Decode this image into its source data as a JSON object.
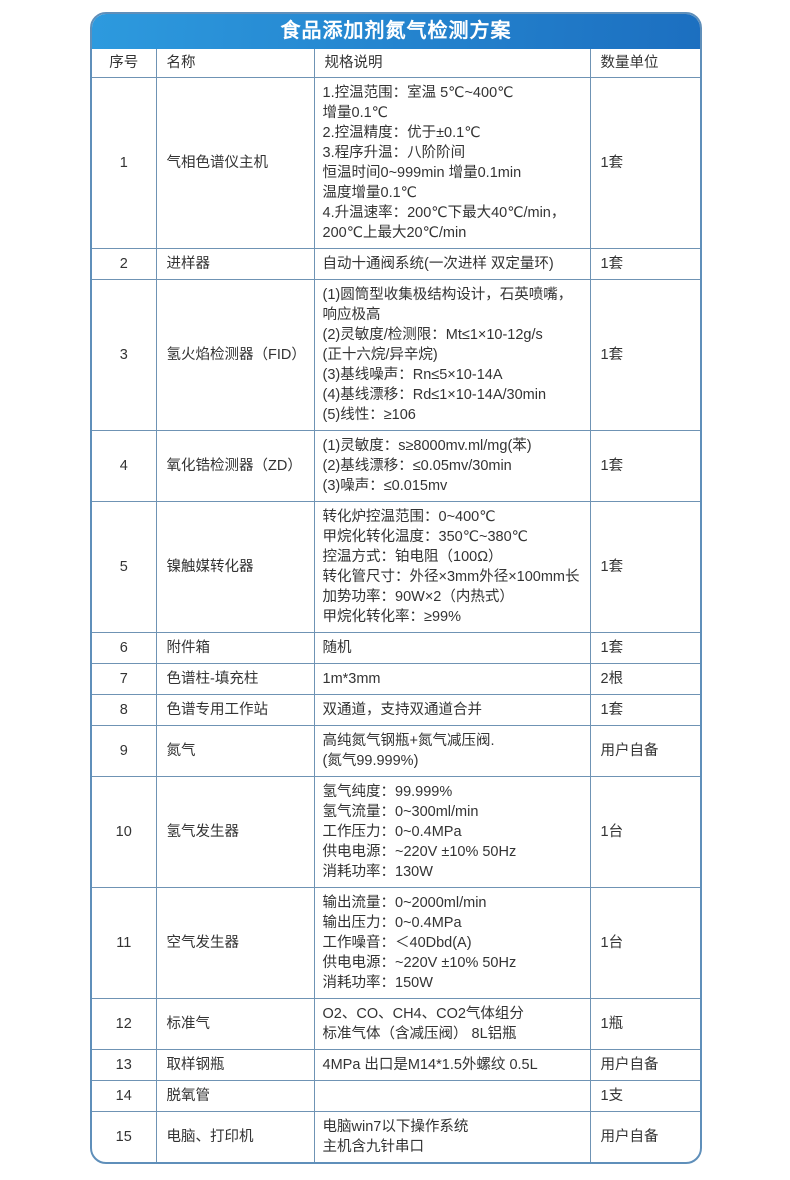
{
  "title": "食品添加剂氮气检测方案",
  "columns": [
    "序号",
    "名称",
    "规格说明",
    "数量单位"
  ],
  "rows": [
    {
      "no": "1",
      "name": "气相色谱仪主机",
      "spec": [
        "1.控温范围：室温 5℃~400℃",
        "增量0.1℃",
        "2.控温精度：优于±0.1℃",
        "3.程序升温：八阶阶间",
        "恒温时间0~999min 增量0.1min",
        "温度增量0.1℃",
        "4.升温速率：200℃下最大40℃/min，",
        "200℃上最大20℃/min"
      ],
      "qty": "1套"
    },
    {
      "no": "2",
      "name": "进样器",
      "spec": [
        "自动十通阀系统(一次进样 双定量环)"
      ],
      "qty": "1套"
    },
    {
      "no": "3",
      "name": "氢火焰检测器（FID）",
      "spec": [
        "(1)圆筒型收集极结构设计，石英喷嘴，",
        "响应极高",
        "(2)灵敏度/检测限：Mt≤1×10-12g/s",
        "(正十六烷/异辛烷)",
        "(3)基线噪声：Rn≤5×10-14A",
        "(4)基线漂移：Rd≤1×10-14A/30min",
        "(5)线性：≥106"
      ],
      "qty": "1套"
    },
    {
      "no": "4",
      "name": "氧化锆检测器（ZD）",
      "spec": [
        "(1)灵敏度：s≥8000mv.ml/mg(苯)",
        "(2)基线漂移：≤0.05mv/30min",
        "(3)噪声：≤0.015mv"
      ],
      "qty": "1套"
    },
    {
      "no": "5",
      "name": "镍触媒转化器",
      "spec": [
        "转化炉控温范围：0~400℃",
        "甲烷化转化温度：350℃~380℃",
        "控温方式：铂电阻（100Ω）",
        "转化管尺寸：外径×3mm外径×100mm长",
        "加势功率：90W×2（内热式）",
        "甲烷化转化率：≥99%"
      ],
      "qty": "1套"
    },
    {
      "no": "6",
      "name": "附件箱",
      "spec": [
        "随机"
      ],
      "qty": "1套"
    },
    {
      "no": "7",
      "name": "色谱柱-填充柱",
      "spec": [
        "1m*3mm"
      ],
      "qty": "2根"
    },
    {
      "no": "8",
      "name": "色谱专用工作站",
      "spec": [
        "双通道，支持双通道合并"
      ],
      "qty": "1套"
    },
    {
      "no": "9",
      "name": "氮气",
      "spec": [
        "高纯氮气钢瓶+氮气减压阀.",
        "(氮气99.999%)"
      ],
      "qty": "用户自备"
    },
    {
      "no": "10",
      "name": "氢气发生器",
      "spec": [
        "氢气纯度：99.999%",
        "氢气流量：0~300ml/min",
        "工作压力：0~0.4MPa",
        "供电电源：~220V ±10% 50Hz",
        "消耗功率：130W"
      ],
      "qty": "1台"
    },
    {
      "no": "11",
      "name": "空气发生器",
      "spec": [
        "输出流量：0~2000ml/min",
        "输出压力：0~0.4MPa",
        "工作噪音：＜40Dbd(A)",
        "供电电源：~220V ±10% 50Hz",
        "消耗功率：150W"
      ],
      "qty": "1台"
    },
    {
      "no": "12",
      "name": "标准气",
      "spec": [
        "O2、CO、CH4、CO2气体组分",
        "标准气体（含减压阀） 8L铝瓶"
      ],
      "qty": "1瓶"
    },
    {
      "no": "13",
      "name": "取样钢瓶",
      "spec": [
        "4MPa 出口是M14*1.5外螺纹 0.5L"
      ],
      "qty": "用户自备"
    },
    {
      "no": "14",
      "name": "脱氧管",
      "spec": [],
      "qty": "1支"
    },
    {
      "no": "15",
      "name": "电脑、打印机",
      "spec": [
        "电脑win7以下操作系统",
        "主机含九针串口"
      ],
      "qty": "用户自备"
    }
  ],
  "colors": {
    "title_gradient_start": "#2d9ade",
    "title_gradient_end": "#1c6fc0",
    "border": "#5f8fba",
    "grid": "#6f93b4",
    "text": "#333333",
    "title_text": "#ffffff"
  }
}
